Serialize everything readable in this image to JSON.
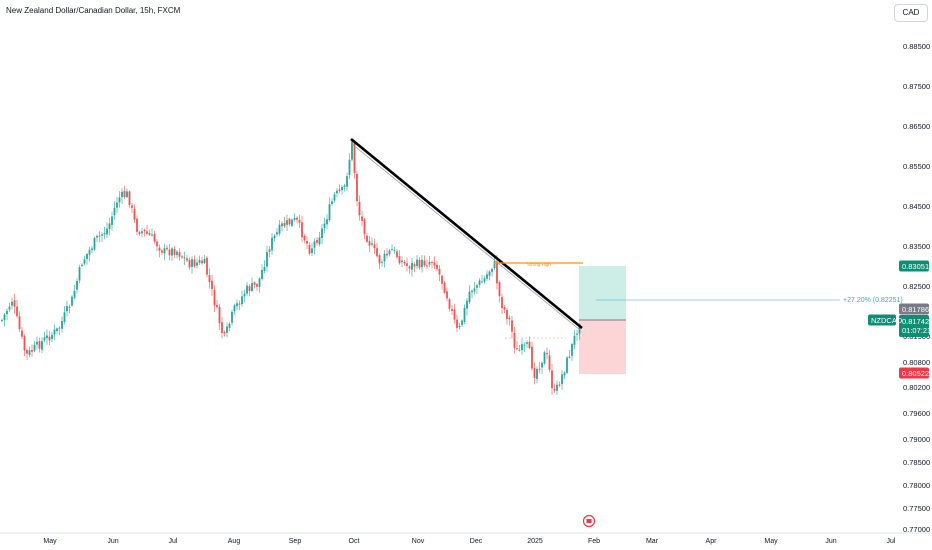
{
  "header": {
    "title": "New Zealand Dollar/Canadian Dollar, 15h, FXCM",
    "currency": "CAD"
  },
  "colors": {
    "up": "#26a69a",
    "down": "#ef5350",
    "trendline": "#000000",
    "strong_high": "#f7931a",
    "projection": "#4ba3c7",
    "target_zone": "#cdeee7",
    "stop_zone": "#fcd6d6",
    "price_tag": "#0e8f74",
    "stop_tag": "#f23645",
    "grey_tag": "#787b86"
  },
  "chart_data": {
    "type": "candlestick",
    "symbol": "NZDCAD",
    "x_ticks": [
      "May",
      "Jun",
      "Jul",
      "Aug",
      "Sep",
      "Oct",
      "Nov",
      "Dec",
      "2025",
      "Feb",
      "Mar",
      "Apr",
      "May",
      "Jun",
      "Jul"
    ],
    "y_ticks": [
      "0.88500",
      "0.87500",
      "0.86500",
      "0.85500",
      "0.84500",
      "0.83500",
      "0.82500",
      "0.81500",
      "0.80800",
      "0.80200",
      "0.79600",
      "0.79000",
      "0.78500",
      "0.78000",
      "0.77500",
      "0.77000"
    ],
    "annotations": {
      "strong_high_label": "Strong High",
      "projection_label": "+27.20% (0.82251)"
    },
    "price_labels": {
      "target": "0.83051",
      "entry": "0.81786",
      "symbol": "NZDCAD",
      "last": "0.81742",
      "countdown": "01:07:21",
      "stop": "0.80522"
    }
  }
}
